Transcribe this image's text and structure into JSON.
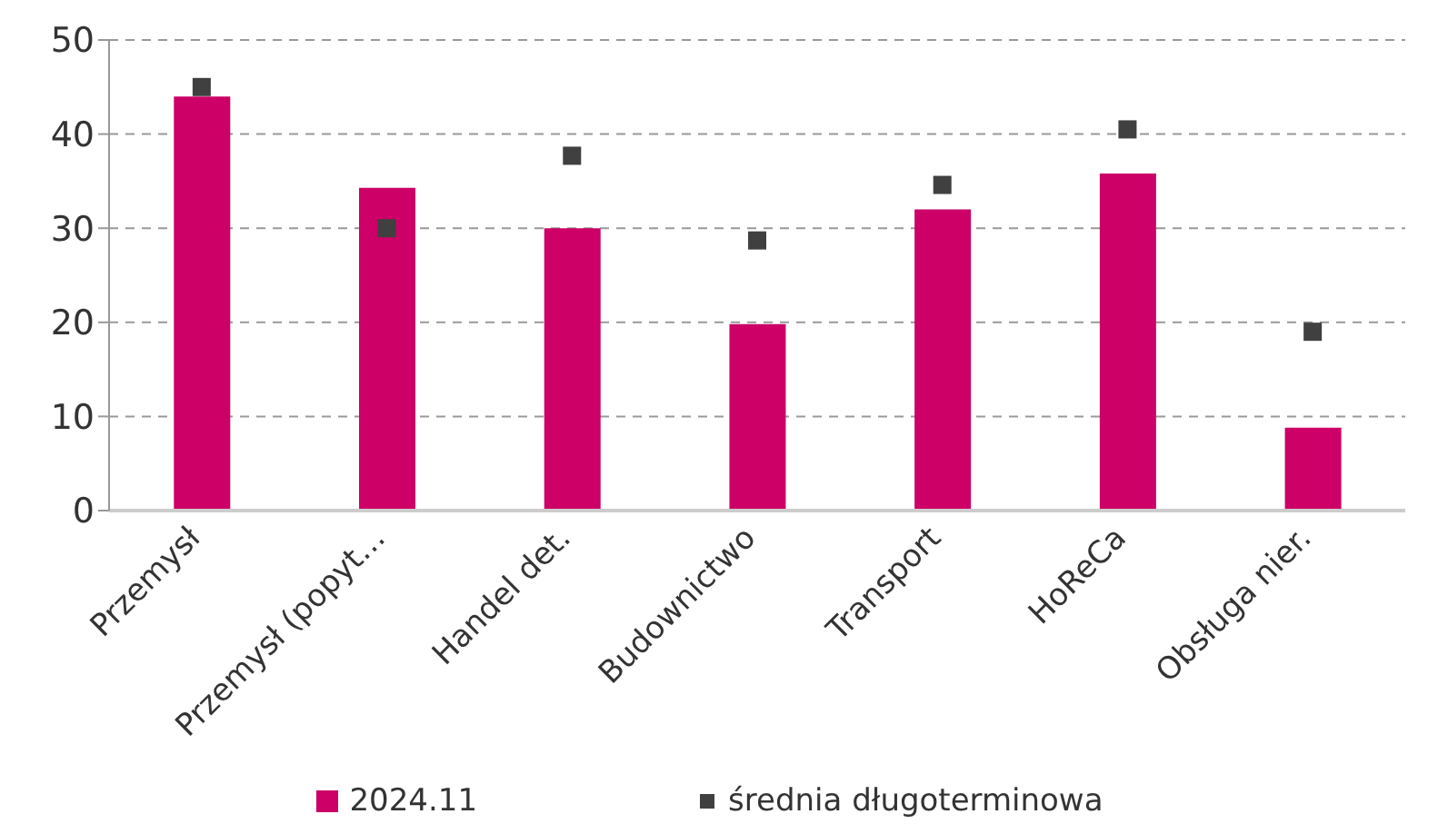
{
  "chart_data": {
    "type": "bar",
    "categories": [
      "Przemysł",
      "Przemysł (popyt…",
      "Handel det.",
      "Budownictwo",
      "Transport",
      "HoReCa",
      "Obsługa nier."
    ],
    "series": [
      {
        "name": "2024.11",
        "color": "#cc0066",
        "values": [
          44,
          34.3,
          30,
          19.8,
          32,
          35.8,
          8.8
        ]
      },
      {
        "name": "średnia długoterminowa",
        "type": "scatter",
        "color": "#404040",
        "values": [
          45,
          30,
          37.7,
          28.7,
          34.6,
          40.5,
          19
        ]
      }
    ],
    "ylim": [
      0,
      50
    ],
    "yticks": [
      0,
      10,
      20,
      30,
      40,
      50
    ],
    "grid": "y",
    "legend": "bottom",
    "marker": "square"
  }
}
